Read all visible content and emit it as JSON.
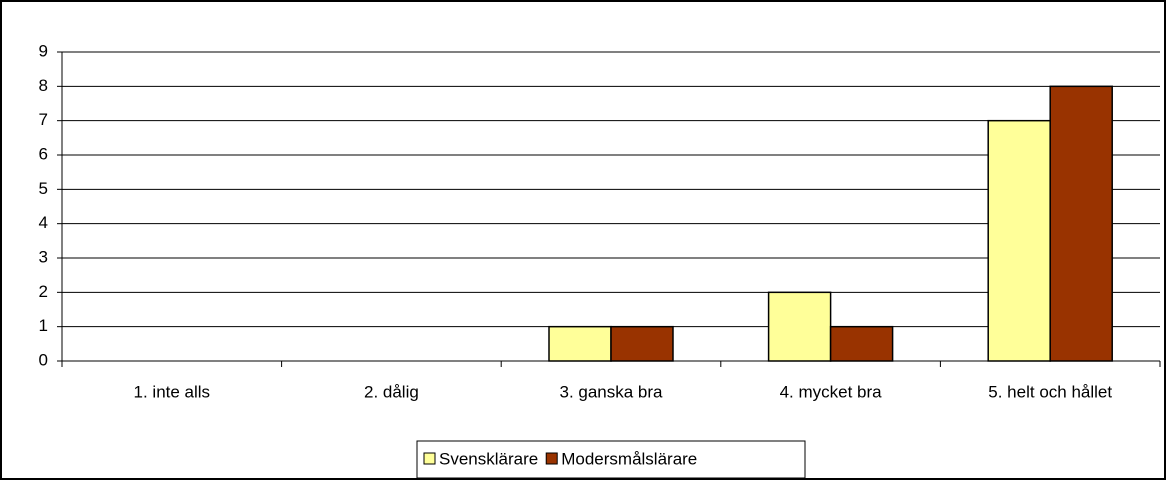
{
  "chart_data": {
    "type": "bar",
    "categories": [
      "1. inte alls",
      "2. dålig",
      "3. ganska bra",
      "4. mycket bra",
      "5. helt och hållet"
    ],
    "series": [
      {
        "name": "Svensklärare",
        "color": "#ffff99",
        "values": [
          0,
          0,
          1,
          2,
          7
        ]
      },
      {
        "name": "Modersmålslärare",
        "color": "#993300",
        "values": [
          0,
          0,
          1,
          1,
          8
        ]
      }
    ],
    "ylim": [
      0,
      9
    ],
    "yticks": [
      0,
      1,
      2,
      3,
      4,
      5,
      6,
      7,
      8,
      9
    ],
    "grid": true,
    "legend": "bottom"
  }
}
